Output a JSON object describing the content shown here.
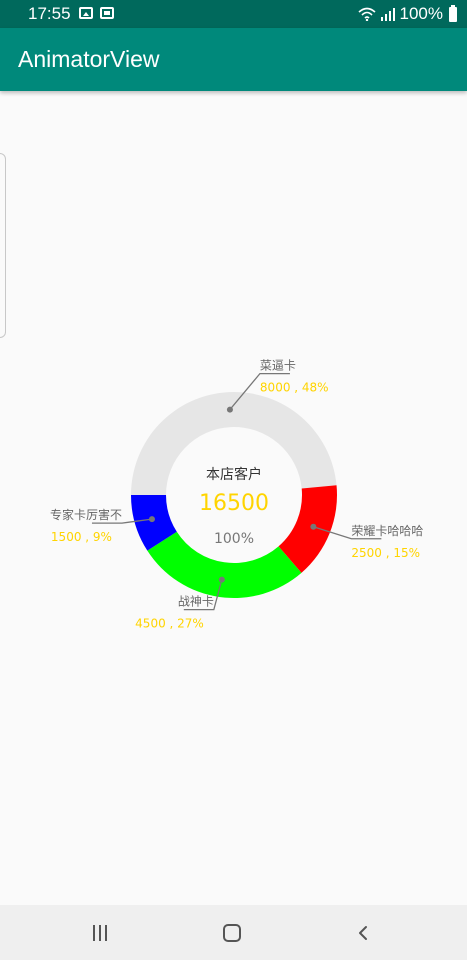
{
  "status_bar": {
    "time": "17:55",
    "battery": "100%"
  },
  "app_bar": {
    "title": "AnimatorView"
  },
  "chart_data": {
    "type": "donut",
    "center_title": "本店客户",
    "center_total": "16500",
    "center_percent": "100%",
    "segments": [
      {
        "name": "菜逼卡",
        "value": 8000,
        "percent": 48,
        "label": "8000 , 48%",
        "color": "#e6e6e6"
      },
      {
        "name": "荣耀卡哈哈哈",
        "value": 2500,
        "percent": 15,
        "label": "2500 , 15%",
        "color": "#ff0000"
      },
      {
        "name": "战神卡",
        "value": 4500,
        "percent": 27,
        "label": "4500 , 27%",
        "color": "#00ff00"
      },
      {
        "name": "专家卡厉害不",
        "value": 1500,
        "percent": 9,
        "label": "1500 , 9%",
        "color": "#0000ff"
      }
    ],
    "value_label_color": "#ffd400",
    "name_label_color": "#666666",
    "leader_line_color": "#777777"
  }
}
